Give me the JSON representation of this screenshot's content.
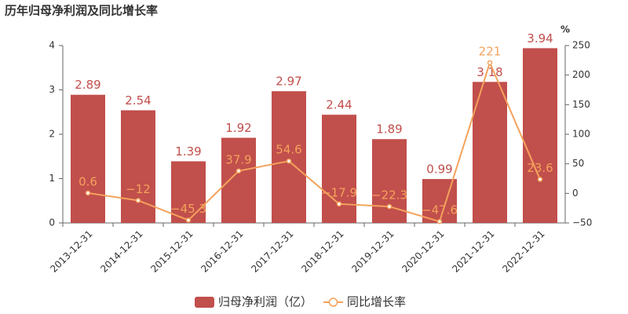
{
  "chart_data": {
    "type": "bar_line",
    "title": "历年归母净利润及同比增长率",
    "y2_label": "%",
    "categories": [
      "2013-12-31",
      "2014-12-31",
      "2015-12-31",
      "2016-12-31",
      "2017-12-31",
      "2018-12-31",
      "2019-12-31",
      "2020-12-31",
      "2021-12-31",
      "2022-12-31"
    ],
    "series": [
      {
        "name": "归母净利润（亿）",
        "type": "bar",
        "color": "#c14f4c",
        "values": [
          2.89,
          2.54,
          1.39,
          1.92,
          2.97,
          2.44,
          1.89,
          0.99,
          3.18,
          3.94
        ]
      },
      {
        "name": "同比增长率",
        "type": "line",
        "axis": "y2",
        "color": "#f4a25c",
        "values": [
          0.6,
          -12,
          -45.3,
          37.9,
          54.6,
          -17.9,
          -22.3,
          -47.6,
          221,
          23.6
        ],
        "value_labels": [
          "0.6",
          "−12",
          "−45.3",
          "37.9",
          "54.6",
          "−17.9",
          "−22.3",
          "−47.6",
          "221",
          "23.6"
        ]
      }
    ],
    "ylim": [
      0,
      4
    ],
    "yticks": [
      0,
      1,
      2,
      3,
      4
    ],
    "y2lim": [
      -50,
      250
    ],
    "y2ticks": [
      {
        "value": -50,
        "label": "−50"
      },
      0,
      50,
      100,
      150,
      200,
      250
    ]
  }
}
